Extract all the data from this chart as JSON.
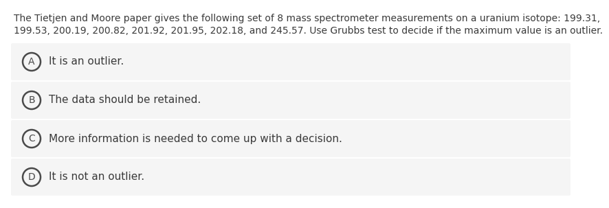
{
  "question_text_line1": "The Tietjen and Moore paper gives the following set of 8 mass spectrometer measurements on a uranium isotope: 199.31,",
  "question_text_line2": "199.53, 200.19, 200.82, 201.92, 201.95, 202.18, and 245.57. Use Grubbs test to decide if the maximum value is an outlier.",
  "options": [
    {
      "label": "A",
      "text": "It is an outlier."
    },
    {
      "label": "B",
      "text": "The data should be retained."
    },
    {
      "label": "C",
      "text": "More information is needed to come up with a decision."
    },
    {
      "label": "D",
      "text": "It is not an outlier."
    }
  ],
  "bg_color": "#ffffff",
  "option_bg_color": "#f5f5f5",
  "text_color": "#3a3a3a",
  "circle_edge_color": "#4a4a4a",
  "font_size_question": 10.0,
  "font_size_option": 11.0,
  "font_size_label": 10.0
}
